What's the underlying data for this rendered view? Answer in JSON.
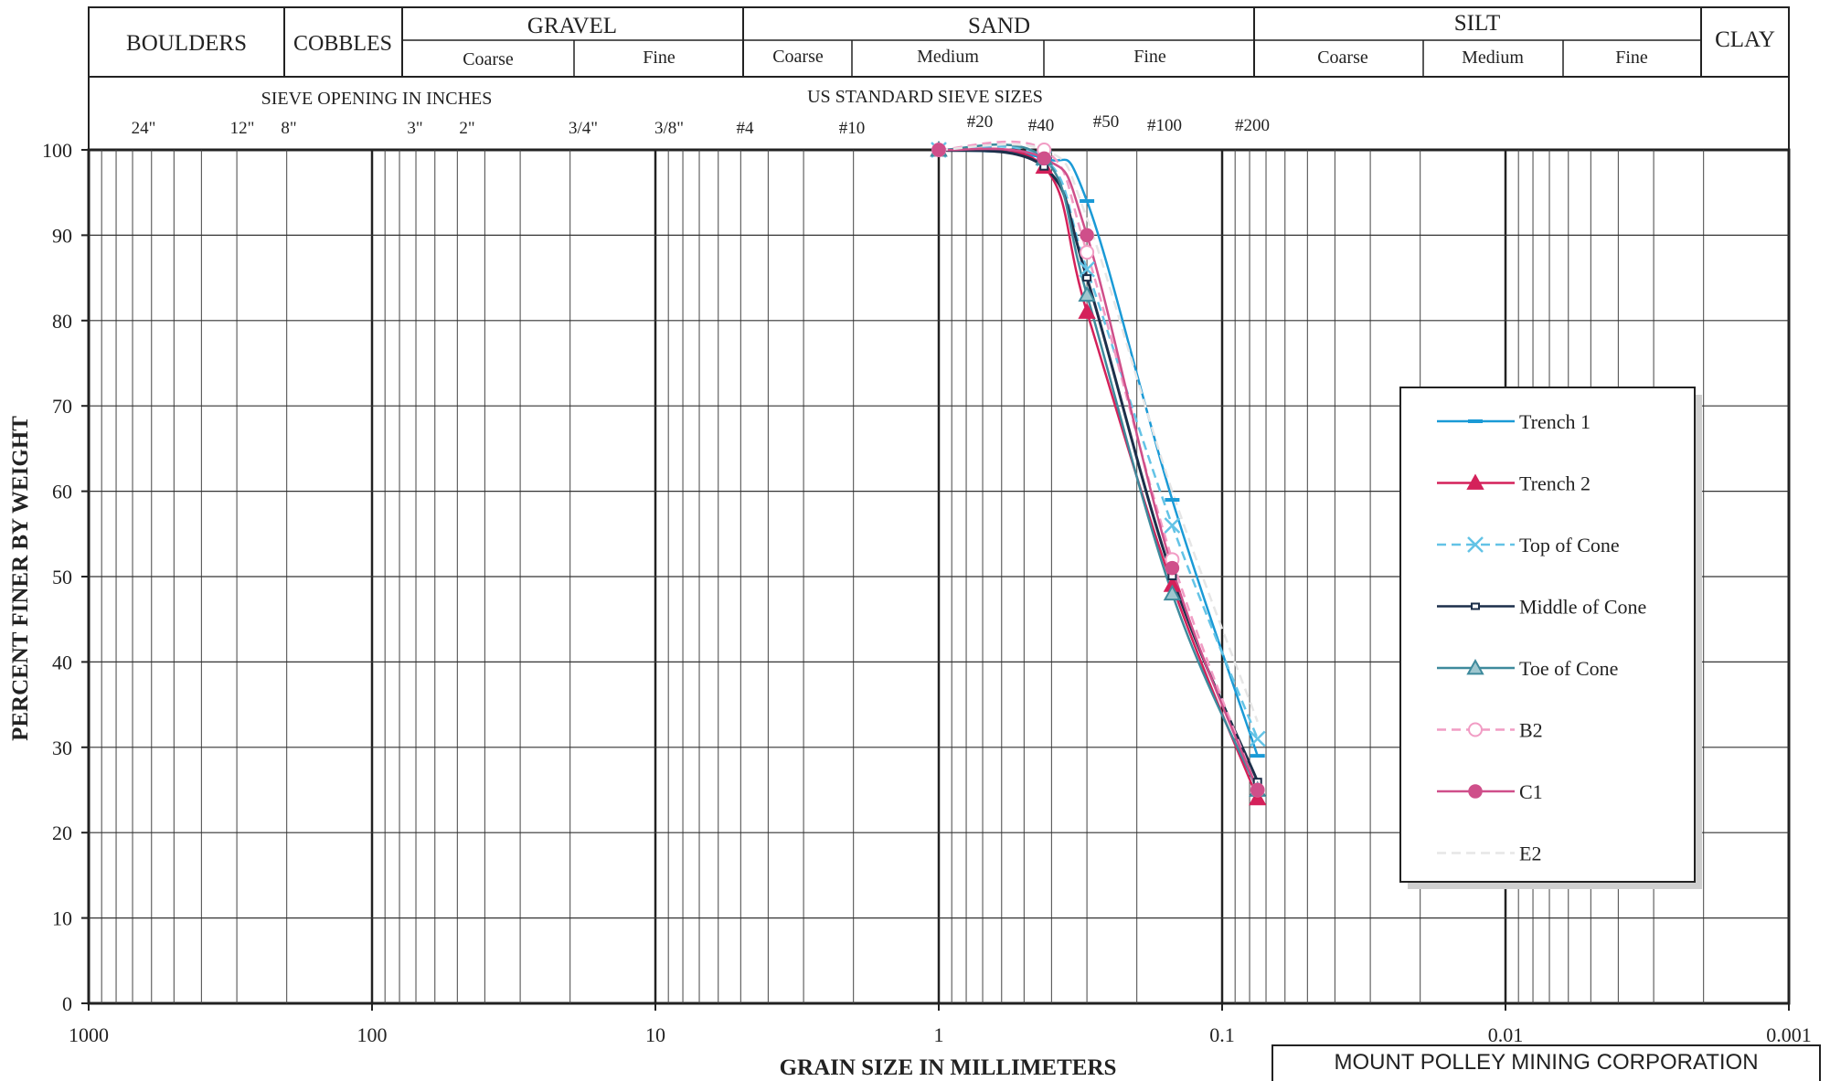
{
  "classification": {
    "groups": [
      {
        "key": "boulders",
        "label": "BOULDERS"
      },
      {
        "key": "cobbles",
        "label": "COBBLES"
      },
      {
        "key": "gravel",
        "label": "GRAVEL",
        "subs": [
          "Coarse",
          "Fine"
        ]
      },
      {
        "key": "sand",
        "label": "SAND",
        "subs": [
          "Coarse",
          "Medium",
          "Fine"
        ]
      },
      {
        "key": "silt",
        "label": "SILT",
        "subs": [
          "Coarse",
          "Medium",
          "Fine"
        ]
      },
      {
        "key": "clay",
        "label": "CLAY"
      }
    ]
  },
  "sieves": {
    "inches_title": "SIEVE OPENING IN INCHES",
    "us_title": "US STANDARD SIEVE SIZES",
    "inch_labels": [
      "24\"",
      "12\"",
      "8\"",
      "3\"",
      "2\"",
      "3/4\"",
      "3/8\""
    ],
    "us_labels": [
      "#4",
      "#10",
      "#20",
      "#40",
      "#50",
      "#100",
      "#200"
    ]
  },
  "company": "MOUNT POLLEY MINING CORPORATION",
  "chart_data": {
    "type": "line",
    "title": "",
    "xlabel": "GRAIN SIZE IN MILLIMETERS",
    "ylabel": "PERCENT FINER BY WEIGHT",
    "x_scale": "log",
    "x_reversed": true,
    "xlim": [
      1000,
      0.001
    ],
    "ylim": [
      0,
      100
    ],
    "x_ticks": [
      "1000",
      "100",
      "10",
      "1",
      "0.1",
      "0.01",
      "0.001"
    ],
    "y_ticks": [
      "0",
      "10",
      "20",
      "30",
      "40",
      "50",
      "60",
      "70",
      "80",
      "90",
      "100"
    ],
    "grid": true,
    "legend_position": "right",
    "series": [
      {
        "name": "Trench 1",
        "color": "#1a9ad6",
        "marker": "dash",
        "dashed": false,
        "x": [
          1.0,
          0.425,
          0.3,
          0.15,
          0.075
        ],
        "y": [
          100,
          99,
          94,
          59,
          29
        ]
      },
      {
        "name": "Trench 2",
        "color": "#d4215a",
        "marker": "triangle",
        "dashed": false,
        "x": [
          1.0,
          0.425,
          0.3,
          0.15,
          0.075
        ],
        "y": [
          100,
          98,
          81,
          49,
          24
        ]
      },
      {
        "name": "Top of Cone",
        "color": "#63c3e6",
        "marker": "x",
        "dashed": true,
        "x": [
          1.0,
          0.425,
          0.3,
          0.15,
          0.075
        ],
        "y": [
          100,
          99,
          86,
          56,
          31
        ]
      },
      {
        "name": "Middle of Cone",
        "color": "#1c2f4a",
        "marker": "square",
        "dashed": false,
        "x": [
          1.0,
          0.425,
          0.3,
          0.15,
          0.075
        ],
        "y": [
          100,
          98,
          85,
          50,
          26
        ]
      },
      {
        "name": "Toe of Cone",
        "color": "#3e8a9c",
        "marker": "triangle-open",
        "dashed": false,
        "x": [
          1.0,
          0.425,
          0.3,
          0.15,
          0.075
        ],
        "y": [
          100,
          99,
          83,
          48,
          25
        ]
      },
      {
        "name": "B2",
        "color": "#f19cc4",
        "marker": "circle-open",
        "dashed": true,
        "x": [
          1.0,
          0.425,
          0.3,
          0.15,
          0.075
        ],
        "y": [
          100,
          100,
          88,
          52,
          25
        ]
      },
      {
        "name": "C1",
        "color": "#cf4f8a",
        "marker": "circle",
        "dashed": false,
        "x": [
          1.0,
          0.425,
          0.3,
          0.15,
          0.075
        ],
        "y": [
          100,
          99,
          90,
          51,
          25
        ]
      },
      {
        "name": "E2",
        "color": "#e6e6e6",
        "marker": "none",
        "dashed": true,
        "x": [
          1.0,
          0.425,
          0.3,
          0.15,
          0.075
        ],
        "y": [
          100,
          100,
          92,
          60,
          33
        ]
      }
    ]
  }
}
